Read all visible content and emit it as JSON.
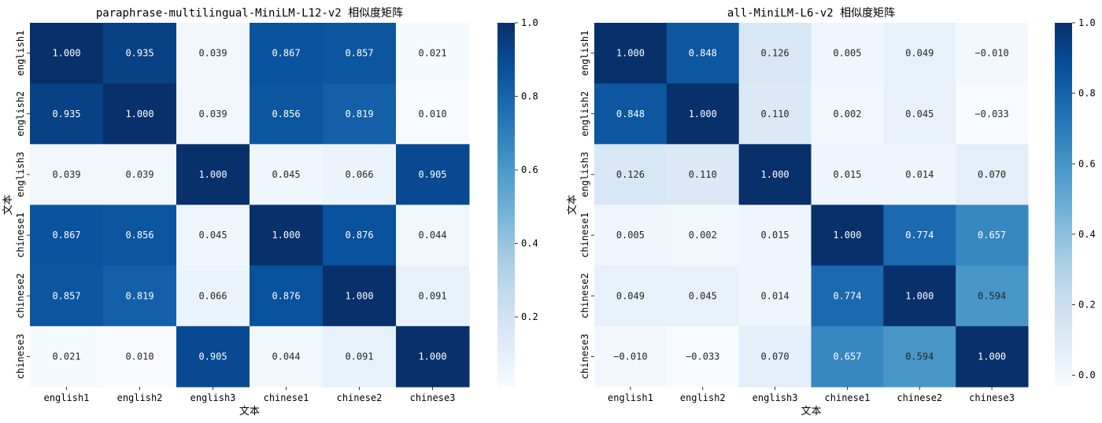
{
  "chart_data": [
    {
      "type": "heatmap",
      "title": "paraphrase-multilingual-MiniLM-L12-v2 相似度矩阵",
      "xlabel": "文本",
      "ylabel": "文本",
      "x_categories": [
        "english1",
        "english2",
        "english3",
        "chinese1",
        "chinese2",
        "chinese3"
      ],
      "y_categories": [
        "english1",
        "english2",
        "english3",
        "chinese1",
        "chinese2",
        "chinese3"
      ],
      "values": [
        [
          1.0,
          0.935,
          0.039,
          0.867,
          0.857,
          0.021
        ],
        [
          0.935,
          1.0,
          0.039,
          0.856,
          0.819,
          0.01
        ],
        [
          0.039,
          0.039,
          1.0,
          0.045,
          0.066,
          0.905
        ],
        [
          0.867,
          0.856,
          0.045,
          1.0,
          0.876,
          0.044
        ],
        [
          0.857,
          0.819,
          0.066,
          0.876,
          1.0,
          0.091
        ],
        [
          0.021,
          0.01,
          0.905,
          0.044,
          0.091,
          1.0
        ]
      ],
      "value_labels": [
        [
          "1.000",
          "0.935",
          "0.039",
          "0.867",
          "0.857",
          "0.021"
        ],
        [
          "0.935",
          "1.000",
          "0.039",
          "0.856",
          "0.819",
          "0.010"
        ],
        [
          "0.039",
          "0.039",
          "1.000",
          "0.045",
          "0.066",
          "0.905"
        ],
        [
          "0.867",
          "0.856",
          "0.045",
          "1.000",
          "0.876",
          "0.044"
        ],
        [
          "0.857",
          "0.819",
          "0.066",
          "0.876",
          "1.000",
          "0.091"
        ],
        [
          "0.021",
          "0.010",
          "0.905",
          "0.044",
          "0.091",
          "1.000"
        ]
      ],
      "colormap": "Blues",
      "color_range": [
        0.01,
        1.0
      ],
      "colorbar_ticks": [
        1.0,
        0.8,
        0.6,
        0.4,
        0.2
      ],
      "colorbar_tick_labels": [
        "1.0",
        "0.8",
        "0.6",
        "0.4",
        "0.2"
      ]
    },
    {
      "type": "heatmap",
      "title": "all-MiniLM-L6-v2 相似度矩阵",
      "xlabel": "文本",
      "ylabel": "文本",
      "x_categories": [
        "english1",
        "english2",
        "english3",
        "chinese1",
        "chinese2",
        "chinese3"
      ],
      "y_categories": [
        "english1",
        "english2",
        "english3",
        "chinese1",
        "chinese2",
        "chinese3"
      ],
      "values": [
        [
          1.0,
          0.848,
          0.126,
          0.005,
          0.049,
          -0.01
        ],
        [
          0.848,
          1.0,
          0.11,
          0.002,
          0.045,
          -0.033
        ],
        [
          0.126,
          0.11,
          1.0,
          0.015,
          0.014,
          0.07
        ],
        [
          0.005,
          0.002,
          0.015,
          1.0,
          0.774,
          0.657
        ],
        [
          0.049,
          0.045,
          0.014,
          0.774,
          1.0,
          0.594
        ],
        [
          -0.01,
          -0.033,
          0.07,
          0.657,
          0.594,
          1.0
        ]
      ],
      "value_labels": [
        [
          "1.000",
          "0.848",
          "0.126",
          "0.005",
          "0.049",
          "−0.010"
        ],
        [
          "0.848",
          "1.000",
          "0.110",
          "0.002",
          "0.045",
          "−0.033"
        ],
        [
          "0.126",
          "0.110",
          "1.000",
          "0.015",
          "0.014",
          "0.070"
        ],
        [
          "0.005",
          "0.002",
          "0.015",
          "1.000",
          "0.774",
          "0.657"
        ],
        [
          "0.049",
          "0.045",
          "0.014",
          "0.774",
          "1.000",
          "0.594"
        ],
        [
          "−0.010",
          "−0.033",
          "0.070",
          "0.657",
          "0.594",
          "1.000"
        ]
      ],
      "colormap": "Blues",
      "color_range": [
        -0.033,
        1.0
      ],
      "colorbar_ticks": [
        1.0,
        0.8,
        0.6,
        0.4,
        0.2,
        0.0
      ],
      "colorbar_tick_labels": [
        "1.0",
        "0.8",
        "0.6",
        "0.4",
        "0.2",
        "0.0"
      ]
    }
  ]
}
